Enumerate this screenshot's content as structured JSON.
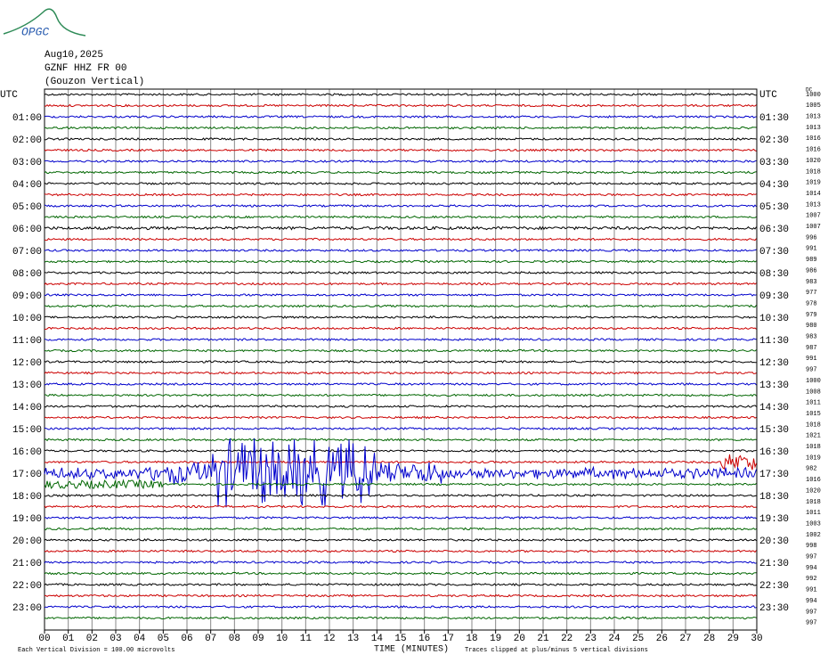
{
  "logo": "OPGC",
  "header": {
    "date": "Aug10,2025",
    "station": "GZNF HHZ FR 00",
    "location": "(Gouzon Vertical)"
  },
  "left_labels": [
    "UTC",
    "01:00",
    "02:00",
    "03:00",
    "04:00",
    "05:00",
    "06:00",
    "07:00",
    "08:00",
    "09:00",
    "10:00",
    "11:00",
    "12:00",
    "13:00",
    "14:00",
    "15:00",
    "16:00",
    "17:00",
    "18:00",
    "19:00",
    "20:00",
    "21:00",
    "22:00",
    "23:00"
  ],
  "right_labels": [
    "UTC",
    "01:30",
    "02:30",
    "03:30",
    "04:30",
    "05:30",
    "06:30",
    "07:30",
    "08:30",
    "09:30",
    "10:30",
    "11:30",
    "12:30",
    "13:30",
    "14:30",
    "15:30",
    "16:30",
    "17:30",
    "18:30",
    "19:30",
    "20:30",
    "21:30",
    "22:30",
    "23:30"
  ],
  "right_header": "DC",
  "right_values": [
    1000,
    1005,
    1013,
    1013,
    1016,
    1016,
    1020,
    1018,
    1019,
    1014,
    1013,
    1007,
    1007,
    996,
    991,
    989,
    986,
    983,
    977,
    978,
    979,
    980,
    983,
    987,
    991,
    997,
    1000,
    1008,
    1011,
    1015,
    1018,
    1021,
    1018,
    1019,
    982,
    1016,
    1020,
    1018,
    1011,
    1003,
    1002,
    998,
    997,
    994,
    992,
    991,
    994,
    997,
    997
  ],
  "x_axis": {
    "ticks": [
      "00",
      "01",
      "02",
      "03",
      "04",
      "05",
      "06",
      "07",
      "08",
      "09",
      "10",
      "11",
      "12",
      "13",
      "14",
      "15",
      "16",
      "17",
      "18",
      "19",
      "20",
      "21",
      "22",
      "23",
      "24",
      "25",
      "26",
      "27",
      "28",
      "29",
      "30"
    ],
    "title": "TIME (MINUTES)"
  },
  "footer": {
    "scale": "Each Vertical Division =  100.00 microvolts",
    "clip": "Traces clipped at plus/minus 5 vertical divisions"
  }
}
